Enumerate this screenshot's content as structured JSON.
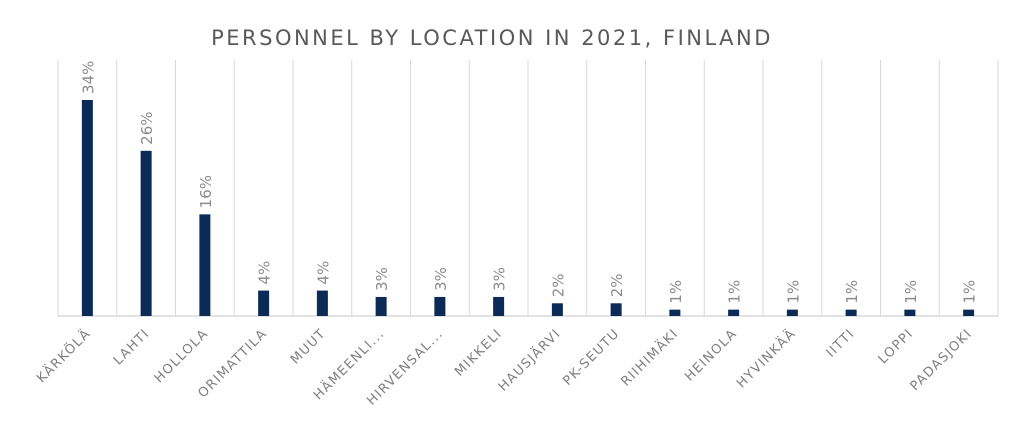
{
  "chart_data": {
    "type": "bar",
    "title": "PERSONNEL BY LOCATION IN 2021, FINLAND",
    "xlabel": "",
    "ylabel": "",
    "categories": [
      "KÄRKÖLÄ",
      "LAHTI",
      "HOLLOLA",
      "ORIMATTILA",
      "MUUT",
      "HÄMEENLI...",
      "HIRVENSAL...",
      "MIKKELI",
      "HAUSJÄRVI",
      "PK-SEUTU",
      "RIIHIMÄKI",
      "HEINOLA",
      "HYVINKÄÄ",
      "IITTI",
      "LOPPI",
      "PADASJOKI"
    ],
    "values": [
      34,
      26,
      16,
      4,
      4,
      3,
      3,
      3,
      2,
      2,
      1,
      1,
      1,
      1,
      1,
      1
    ],
    "data_labels": [
      "34%",
      "26%",
      "16%",
      "4%",
      "4%",
      "3%",
      "3%",
      "3%",
      "2%",
      "2%",
      "1%",
      "1%",
      "1%",
      "1%",
      "1%",
      "1%"
    ],
    "ylim": [
      0,
      40
    ],
    "grid": true,
    "legend": "none",
    "colors": {
      "bar": "#0b2a57",
      "grid": "#d9d9d9",
      "axis": "#d9d9d9",
      "label_text": "#7f7f7f",
      "data_label_text": "#8c8c8c",
      "title_text": "#595959"
    }
  }
}
